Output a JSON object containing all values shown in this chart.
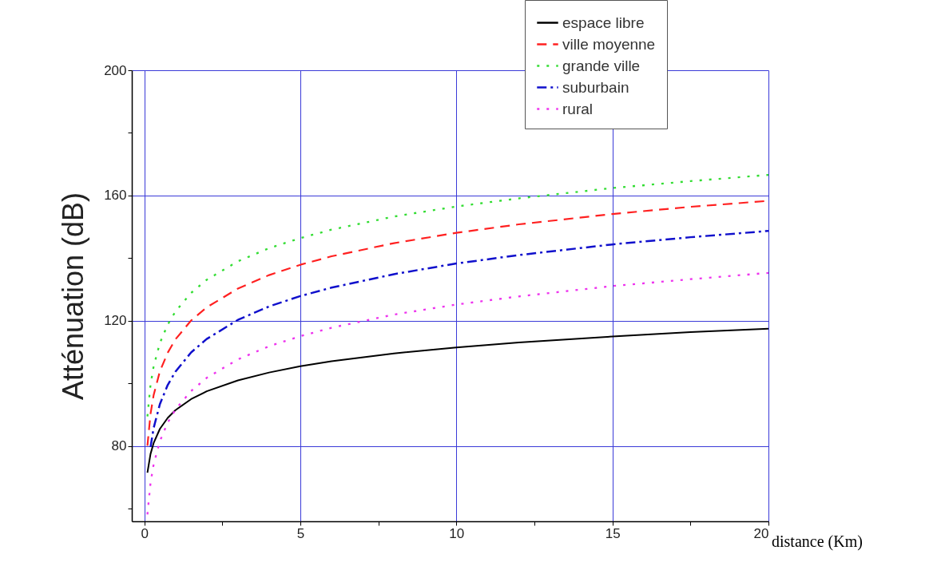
{
  "chart_data": {
    "type": "line",
    "xlabel": "distance (Km)",
    "ylabel": "Atténuation (dB)",
    "x": [
      0.1,
      0.2,
      0.3,
      0.5,
      0.75,
      1,
      1.5,
      2,
      3,
      4,
      5,
      6,
      8,
      10,
      12,
      15,
      17.5,
      20
    ],
    "series": [
      {
        "name": "espace libre",
        "color": "#000000",
        "line_style": "solid",
        "values": [
          71.5,
          77.5,
          81.0,
          85.5,
          89.0,
          91.5,
          95.0,
          97.5,
          101.0,
          103.5,
          105.5,
          107.1,
          109.6,
          111.5,
          113.1,
          115.0,
          116.4,
          117.5
        ]
      },
      {
        "name": "ville moyenne",
        "color": "#ff2020",
        "line_style": "dashed",
        "values": [
          80.1,
          90.3,
          96.3,
          103.9,
          109.8,
          114.1,
          120.1,
          124.3,
          130.3,
          134.6,
          137.9,
          140.6,
          144.8,
          148.1,
          150.8,
          154.1,
          156.4,
          158.3
        ]
      },
      {
        "name": "grande ville",
        "color": "#33dd33",
        "line_style": "dotted",
        "values": [
          89.5,
          99.6,
          105.5,
          112.9,
          118.8,
          123.0,
          128.9,
          133.1,
          139.0,
          143.2,
          146.4,
          149.1,
          153.3,
          156.5,
          159.1,
          162.4,
          164.6,
          166.6
        ]
      },
      {
        "name": "suburbain",
        "color": "#1010cc",
        "line_style": "dashdot",
        "x": [
          0.2,
          0.3,
          0.5,
          0.75,
          1,
          1.5,
          2,
          3,
          4,
          5,
          6,
          8,
          10,
          12,
          15,
          17.5,
          20
        ],
        "values": [
          79.7,
          85.8,
          93.4,
          99.5,
          103.8,
          109.9,
          114.2,
          120.3,
          124.6,
          127.9,
          130.6,
          134.9,
          138.3,
          141.0,
          144.4,
          146.7,
          148.7
        ]
      },
      {
        "name": "rural",
        "color": "#ee33ee",
        "line_style": "dotted",
        "values": [
          58.2,
          68.3,
          74.2,
          81.6,
          87.5,
          91.7,
          97.6,
          101.8,
          107.7,
          111.9,
          115.1,
          117.8,
          122.0,
          125.2,
          127.8,
          131.1,
          133.3,
          135.3
        ]
      }
    ],
    "xlim": [
      -0.4,
      20
    ],
    "xticks": [
      0,
      {
        "value": 2.5,
        "label": null
      },
      5,
      {
        "value": 7.5,
        "label": null
      },
      10,
      {
        "value": 12.5,
        "label": null
      },
      15,
      {
        "value": 17.5,
        "label": null
      },
      20
    ],
    "ylim": [
      56,
      200
    ],
    "yticks": [
      {
        "value": 60,
        "label": null
      },
      80,
      {
        "value": 100,
        "label": null
      },
      120,
      {
        "value": 140,
        "label": null
      },
      160,
      {
        "value": 180,
        "label": null
      },
      200
    ],
    "grid": true,
    "legend": "top right"
  }
}
